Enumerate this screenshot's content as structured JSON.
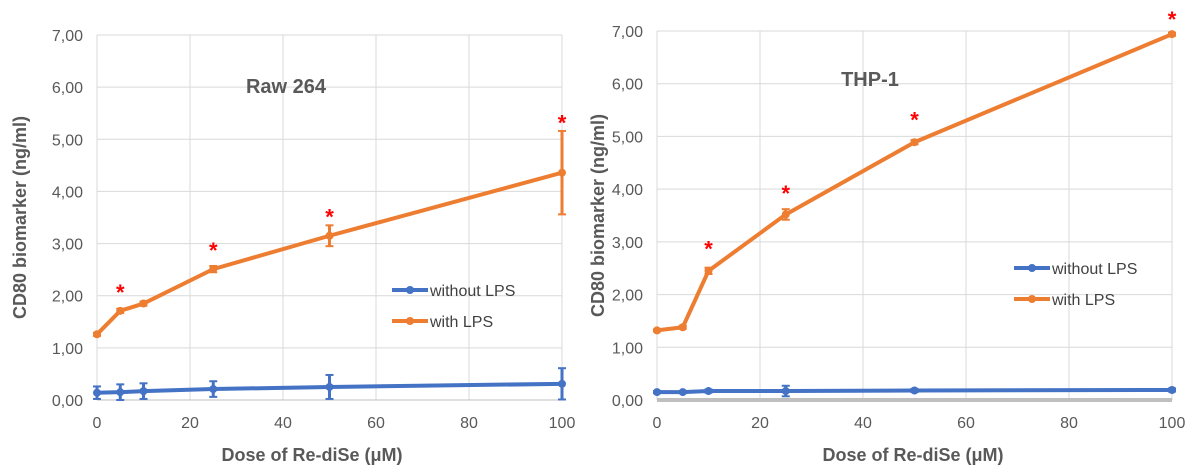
{
  "chart_data": [
    {
      "type": "line",
      "title": "Raw 264",
      "xlabel": "Dose of Re-diSe (μM)",
      "ylabel": "CD80 biomarker (ng/ml)",
      "xlim": [
        0,
        100
      ],
      "ylim": [
        0,
        7
      ],
      "x_ticks": [
        "0",
        "20",
        "40",
        "60",
        "80",
        "100"
      ],
      "y_ticks": [
        "0,00",
        "1,00",
        "2,00",
        "3,00",
        "4,00",
        "5,00",
        "6,00",
        "7,00"
      ],
      "grid": true,
      "legend_position": "center-right",
      "series": [
        {
          "name": "without LPS",
          "color": "#4472C4",
          "x": [
            0,
            5,
            10,
            25,
            50,
            100
          ],
          "y": [
            0.14,
            0.15,
            0.17,
            0.21,
            0.25,
            0.31
          ],
          "error": [
            0.12,
            0.15,
            0.15,
            0.15,
            0.23,
            0.3
          ]
        },
        {
          "name": "with LPS",
          "color": "#ED7D31",
          "x": [
            0,
            5,
            10,
            25,
            50,
            100
          ],
          "y": [
            1.26,
            1.71,
            1.85,
            2.51,
            3.15,
            4.36
          ],
          "error": [
            0.03,
            0.04,
            0.04,
            0.06,
            0.2,
            0.8
          ]
        }
      ],
      "annotations": [
        {
          "text": "*",
          "x": 5,
          "y": 2.15,
          "color": "#FF0000"
        },
        {
          "text": "*",
          "x": 25,
          "y": 2.95,
          "color": "#FF0000"
        },
        {
          "text": "*",
          "x": 50,
          "y": 3.6,
          "color": "#FF0000"
        },
        {
          "text": "*",
          "x": 100,
          "y": 5.4,
          "color": "#FF0000"
        }
      ]
    },
    {
      "type": "line",
      "title": "THP-1",
      "xlabel": "Dose of Re-diSe (μM)",
      "ylabel": "CD80 biomarker (ng/ml)",
      "xlim": [
        0,
        100
      ],
      "ylim": [
        0,
        7
      ],
      "x_ticks": [
        "0",
        "20",
        "40",
        "60",
        "80",
        "100"
      ],
      "y_ticks": [
        "0,00",
        "1,00",
        "2,00",
        "3,00",
        "4,00",
        "5,00",
        "6,00",
        "7,00"
      ],
      "grid": true,
      "legend_position": "center-right",
      "series": [
        {
          "name": "without LPS",
          "color": "#4472C4",
          "x": [
            0,
            5,
            10,
            25,
            50,
            100
          ],
          "y": [
            0.15,
            0.15,
            0.17,
            0.17,
            0.18,
            0.19
          ],
          "error": [
            0.02,
            0.02,
            0.03,
            0.1,
            0.03,
            0.03
          ]
        },
        {
          "name": "with LPS",
          "color": "#ED7D31",
          "x": [
            0,
            5,
            10,
            25,
            50,
            100
          ],
          "y": [
            1.32,
            1.38,
            2.45,
            3.52,
            4.89,
            6.94
          ],
          "error": [
            0.02,
            0.03,
            0.06,
            0.1,
            0.04,
            0.03
          ]
        }
      ],
      "annotations": [
        {
          "text": "*",
          "x": 10,
          "y": 2.95,
          "color": "#FF0000"
        },
        {
          "text": "*",
          "x": 25,
          "y": 4.0,
          "color": "#FF0000"
        },
        {
          "text": "*",
          "x": 50,
          "y": 5.4,
          "color": "#FF0000"
        },
        {
          "text": "*",
          "x": 100,
          "y": 7.3,
          "color": "#FF0000"
        }
      ]
    }
  ]
}
